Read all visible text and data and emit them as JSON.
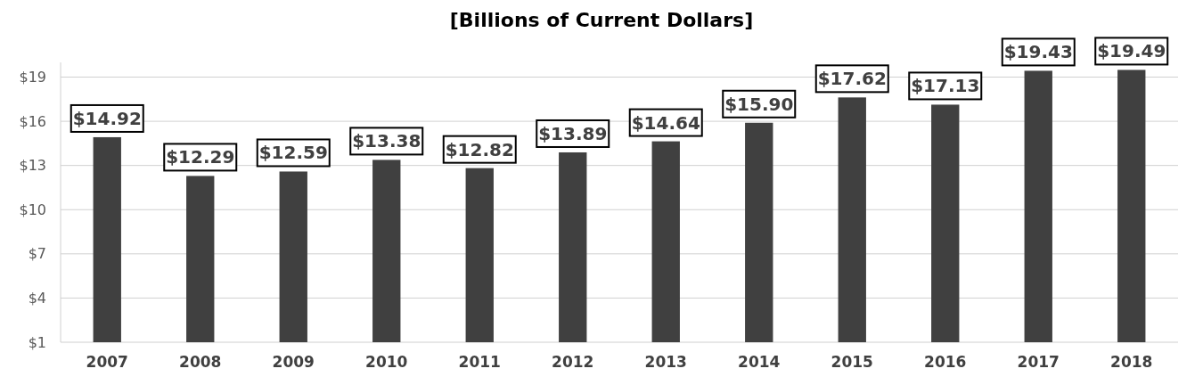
{
  "chart_data": {
    "type": "bar",
    "title": "[Billions of Current Dollars]",
    "categories": [
      "2007",
      "2008",
      "2009",
      "2010",
      "2011",
      "2012",
      "2013",
      "2014",
      "2015",
      "2016",
      "2017",
      "2018"
    ],
    "values": [
      14.92,
      12.29,
      12.59,
      13.38,
      12.82,
      13.89,
      14.64,
      15.9,
      17.62,
      17.13,
      19.43,
      19.49
    ],
    "value_labels": [
      "$14.92",
      "$12.29",
      "$12.59",
      "$13.38",
      "$12.82",
      "$13.89",
      "$14.64",
      "$15.90",
      "$17.62",
      "$17.13",
      "$19.43",
      "$19.49"
    ],
    "color": "#404040",
    "ylim": [
      1,
      20
    ],
    "yticks": [
      {
        "value": 1,
        "label": "$1"
      },
      {
        "value": 4,
        "label": "$4"
      },
      {
        "value": 7,
        "label": "$7"
      },
      {
        "value": 10,
        "label": "$10"
      },
      {
        "value": 13,
        "label": "$13"
      },
      {
        "value": 16,
        "label": "$16"
      },
      {
        "value": 19,
        "label": "$19"
      }
    ],
    "grid": "y"
  }
}
